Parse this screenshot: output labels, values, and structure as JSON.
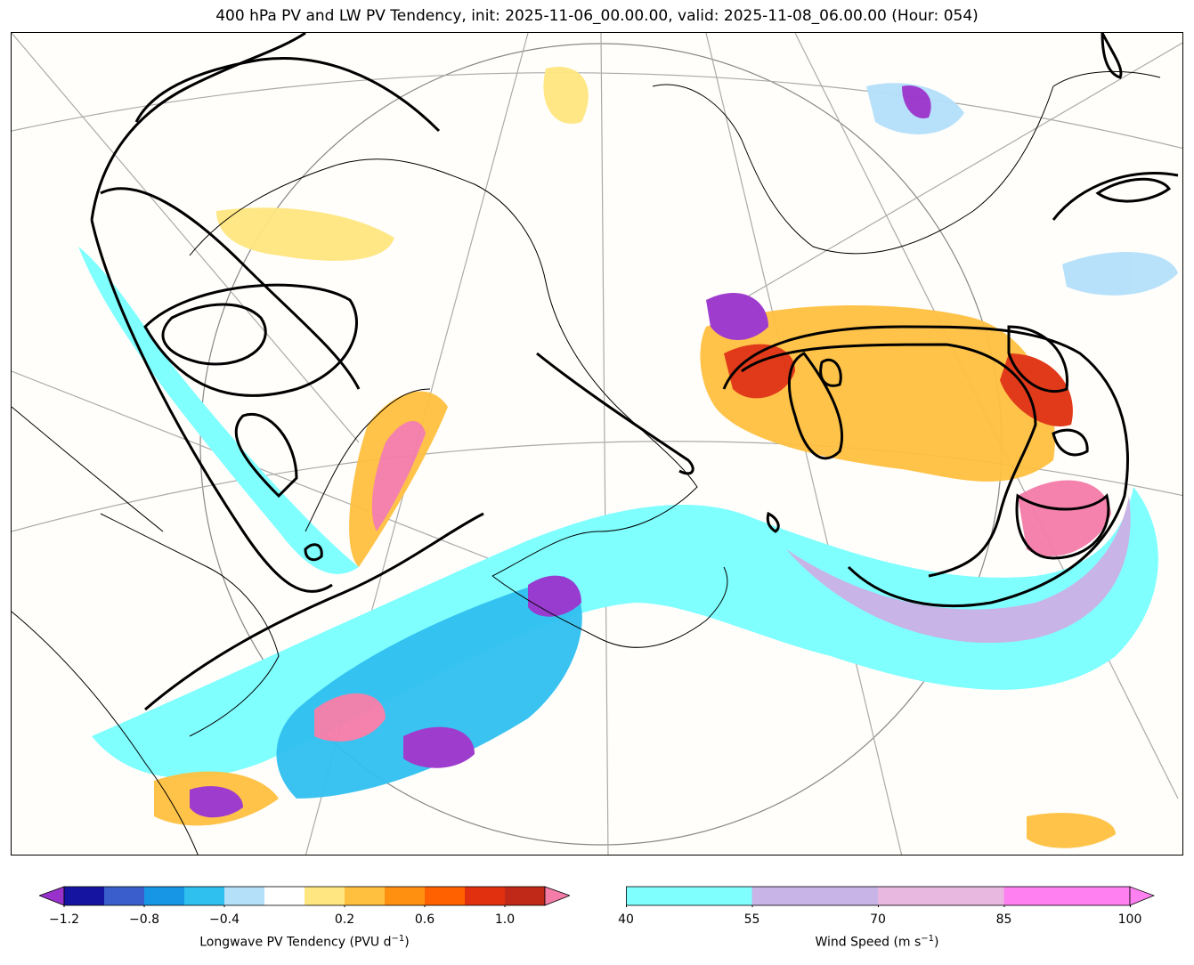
{
  "title": "400 hPa PV and LW PV Tendency, init: 2025-11-06_00.00.00, valid: 2025-11-08_06.00.00 (Hour: 054)",
  "pv_tendency_colorbar": {
    "label_main": "Longwave PV Tendency (PVU d",
    "label_exp": "−1",
    "label_end": ")",
    "ticks": [
      "−1.2",
      "−0.8",
      "−0.4",
      "0.2",
      "0.6",
      "1.0"
    ],
    "colors": [
      "#9932cc",
      "#1414a0",
      "#3a5fcd",
      "#1796e6",
      "#30c0f0",
      "#b4e0fa",
      "#ffffff",
      "#ffe680",
      "#ffc040",
      "#ff9010",
      "#ff6000",
      "#e03010",
      "#c02818",
      "#f47ca8"
    ]
  },
  "wind_colorbar": {
    "label_main": "Wind Speed (m s",
    "label_exp": "−1",
    "label_end": ")",
    "ticks": [
      "40",
      "55",
      "70",
      "85",
      "100"
    ],
    "colors": [
      "#80ffff",
      "#c8b4e6",
      "#e8b8e0",
      "#ff80f0"
    ]
  },
  "colors": {
    "coast": "#000000",
    "grid": "#aaaaaa",
    "pv_contour": "#000000",
    "jet": "#80ffff",
    "jet_core": "#c8b4e6"
  }
}
